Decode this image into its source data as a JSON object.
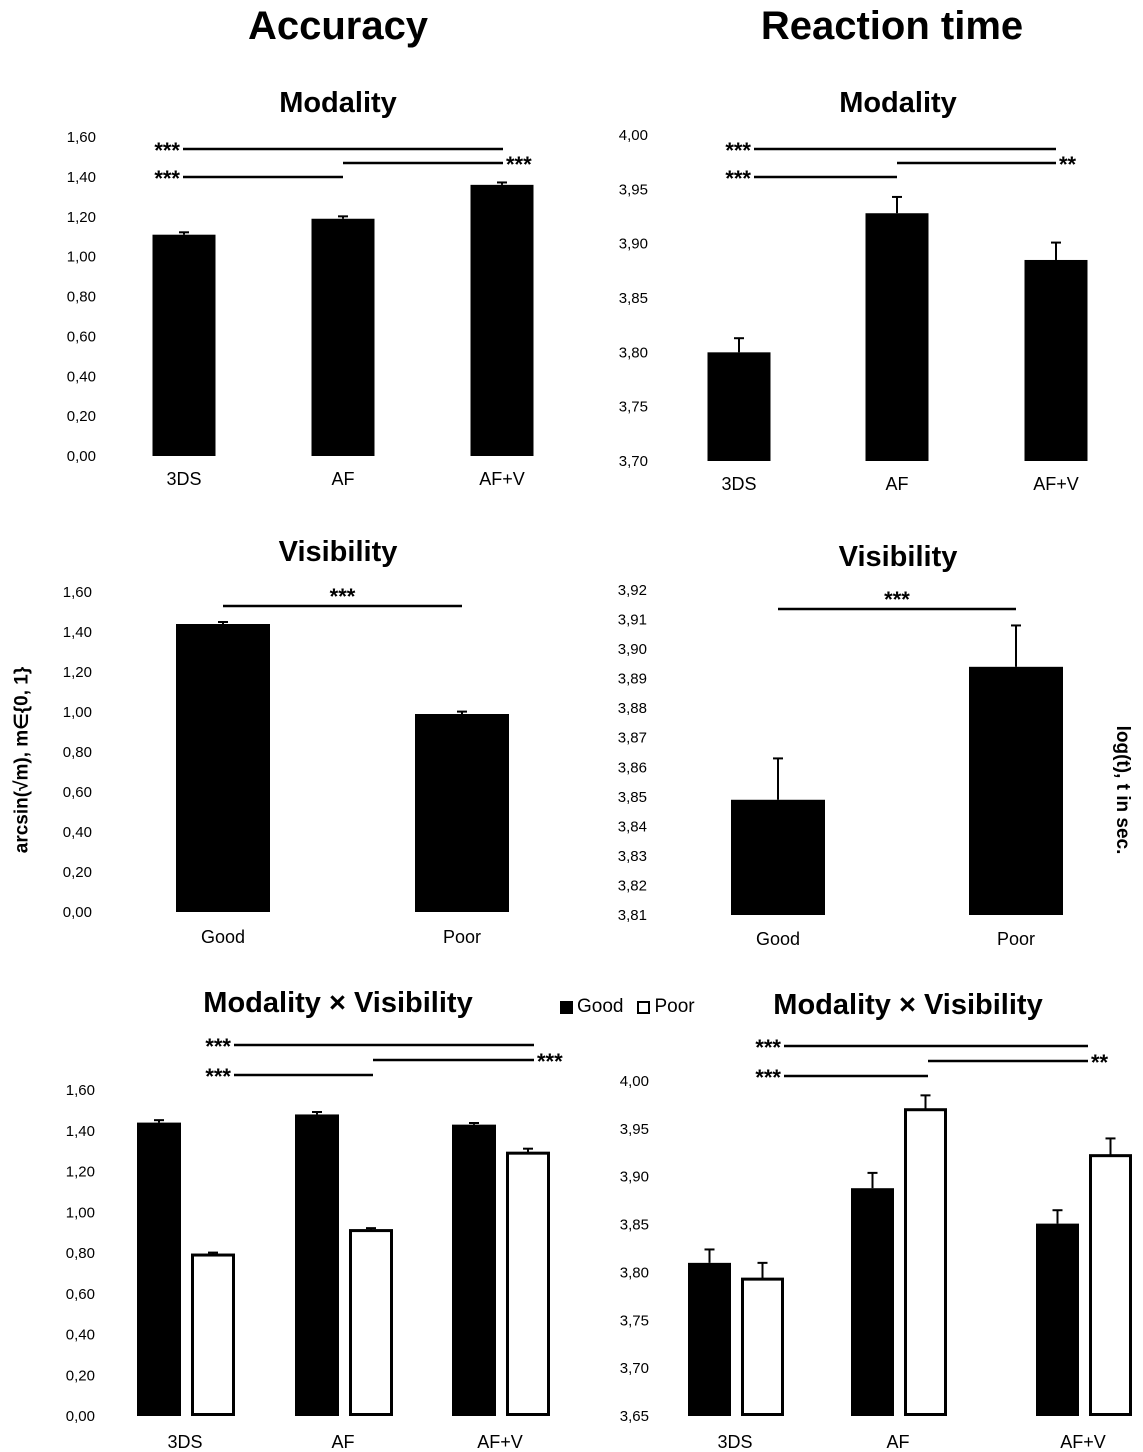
{
  "headers": {
    "left": "Accuracy",
    "right": "Reaction time"
  },
  "ylabels": {
    "left": "arcsin(√m), m∈{0, 1}",
    "right": "log(t), t in sec."
  },
  "legend": {
    "good": "Good",
    "poor": "Poor"
  },
  "colors": {
    "good": "#000000",
    "poor": "#ffffff",
    "outline": "#000000"
  },
  "chart_data": [
    {
      "type": "bar",
      "title": "Modality",
      "categories": [
        "3DS",
        "AF",
        "AF+V"
      ],
      "ylim": [
        0,
        1.6
      ],
      "yticks": [
        "0,00",
        "0,20",
        "0,40",
        "0,60",
        "0,80",
        "1,00",
        "1,20",
        "1,40",
        "1,60"
      ],
      "series": [
        {
          "values": [
            1.11,
            1.19,
            1.36
          ],
          "errors": [
            0.012,
            0.012,
            0.012
          ]
        }
      ],
      "significance": [
        {
          "from": 0,
          "to": 2,
          "label": "***",
          "label_side": "left"
        },
        {
          "from": 1,
          "to": 2,
          "label": "***",
          "label_side": "right"
        },
        {
          "from": 0,
          "to": 1,
          "label": "***",
          "label_side": "left"
        }
      ]
    },
    {
      "type": "bar",
      "title": "Modality",
      "categories": [
        "3DS",
        "AF",
        "AF+V"
      ],
      "ylim": [
        3.7,
        4.0
      ],
      "yticks": [
        "3,70",
        "3,75",
        "3,80",
        "3,85",
        "3,90",
        "3,95",
        "4,00"
      ],
      "series": [
        {
          "values": [
            3.8,
            3.928,
            3.885
          ],
          "errors": [
            0.013,
            0.015,
            0.016
          ]
        }
      ],
      "significance": [
        {
          "from": 0,
          "to": 2,
          "label": "***",
          "label_side": "left"
        },
        {
          "from": 1,
          "to": 2,
          "label": "**",
          "label_side": "right"
        },
        {
          "from": 0,
          "to": 1,
          "label": "***",
          "label_side": "left"
        }
      ]
    },
    {
      "type": "bar",
      "title": "Visibility",
      "categories": [
        "Good",
        "Poor"
      ],
      "ylim": [
        0,
        1.6
      ],
      "yticks": [
        "0,00",
        "0,20",
        "0,40",
        "0,60",
        "0,80",
        "1,00",
        "1,20",
        "1,40",
        "1,60"
      ],
      "series": [
        {
          "values": [
            1.44,
            0.99
          ],
          "errors": [
            0.01,
            0.012
          ]
        }
      ],
      "significance": [
        {
          "from": 0,
          "to": 1,
          "label": "***",
          "label_side": "center"
        }
      ]
    },
    {
      "type": "bar",
      "title": "Visibility",
      "categories": [
        "Good",
        "Poor"
      ],
      "ylim": [
        3.81,
        3.92
      ],
      "yticks": [
        "3,81",
        "3,82",
        "3,83",
        "3,84",
        "3,85",
        "3,86",
        "3,87",
        "3,88",
        "3,89",
        "3,90",
        "3,91",
        "3,92"
      ],
      "series": [
        {
          "values": [
            3.849,
            3.894
          ],
          "errors": [
            0.014,
            0.014
          ]
        }
      ],
      "significance": [
        {
          "from": 0,
          "to": 1,
          "label": "***",
          "label_side": "center"
        }
      ]
    },
    {
      "type": "bar",
      "title": "Modality × Visibility",
      "categories": [
        "3DS",
        "AF",
        "AF+V"
      ],
      "ylim": [
        0,
        1.6
      ],
      "yticks": [
        "0,00",
        "0,20",
        "0,40",
        "0,60",
        "0,80",
        "1,00",
        "1,20",
        "1,40",
        "1,60"
      ],
      "series": [
        {
          "name": "Good",
          "values": [
            1.44,
            1.48,
            1.43
          ],
          "errors": [
            0.012,
            0.012,
            0.008
          ]
        },
        {
          "name": "Poor",
          "values": [
            0.79,
            0.91,
            1.29
          ],
          "errors": [
            0.012,
            0.012,
            0.022
          ]
        }
      ],
      "significance": [
        {
          "from": 0,
          "to": 2,
          "label": "***",
          "label_side": "left"
        },
        {
          "from": 1,
          "to": 2,
          "label": "***",
          "label_side": "right"
        },
        {
          "from": 0,
          "to": 1,
          "label": "***",
          "label_side": "left"
        }
      ]
    },
    {
      "type": "bar",
      "title": "Modality × Visibility",
      "categories": [
        "3DS",
        "AF",
        "AF+V"
      ],
      "ylim": [
        3.65,
        4.0
      ],
      "yticks": [
        "3,65",
        "3,70",
        "3,75",
        "3,80",
        "3,85",
        "3,90",
        "3,95",
        "4,00"
      ],
      "series": [
        {
          "name": "Good",
          "values": [
            3.81,
            3.888,
            3.851
          ],
          "errors": [
            0.014,
            0.016,
            0.014
          ]
        },
        {
          "name": "Poor",
          "values": [
            3.793,
            3.97,
            3.922
          ],
          "errors": [
            0.017,
            0.015,
            0.018
          ]
        }
      ],
      "significance": [
        {
          "from": 0,
          "to": 2,
          "label": "***",
          "label_side": "left"
        },
        {
          "from": 1,
          "to": 2,
          "label": "**",
          "label_side": "right"
        },
        {
          "from": 0,
          "to": 1,
          "label": "***",
          "label_side": "left"
        }
      ]
    }
  ]
}
